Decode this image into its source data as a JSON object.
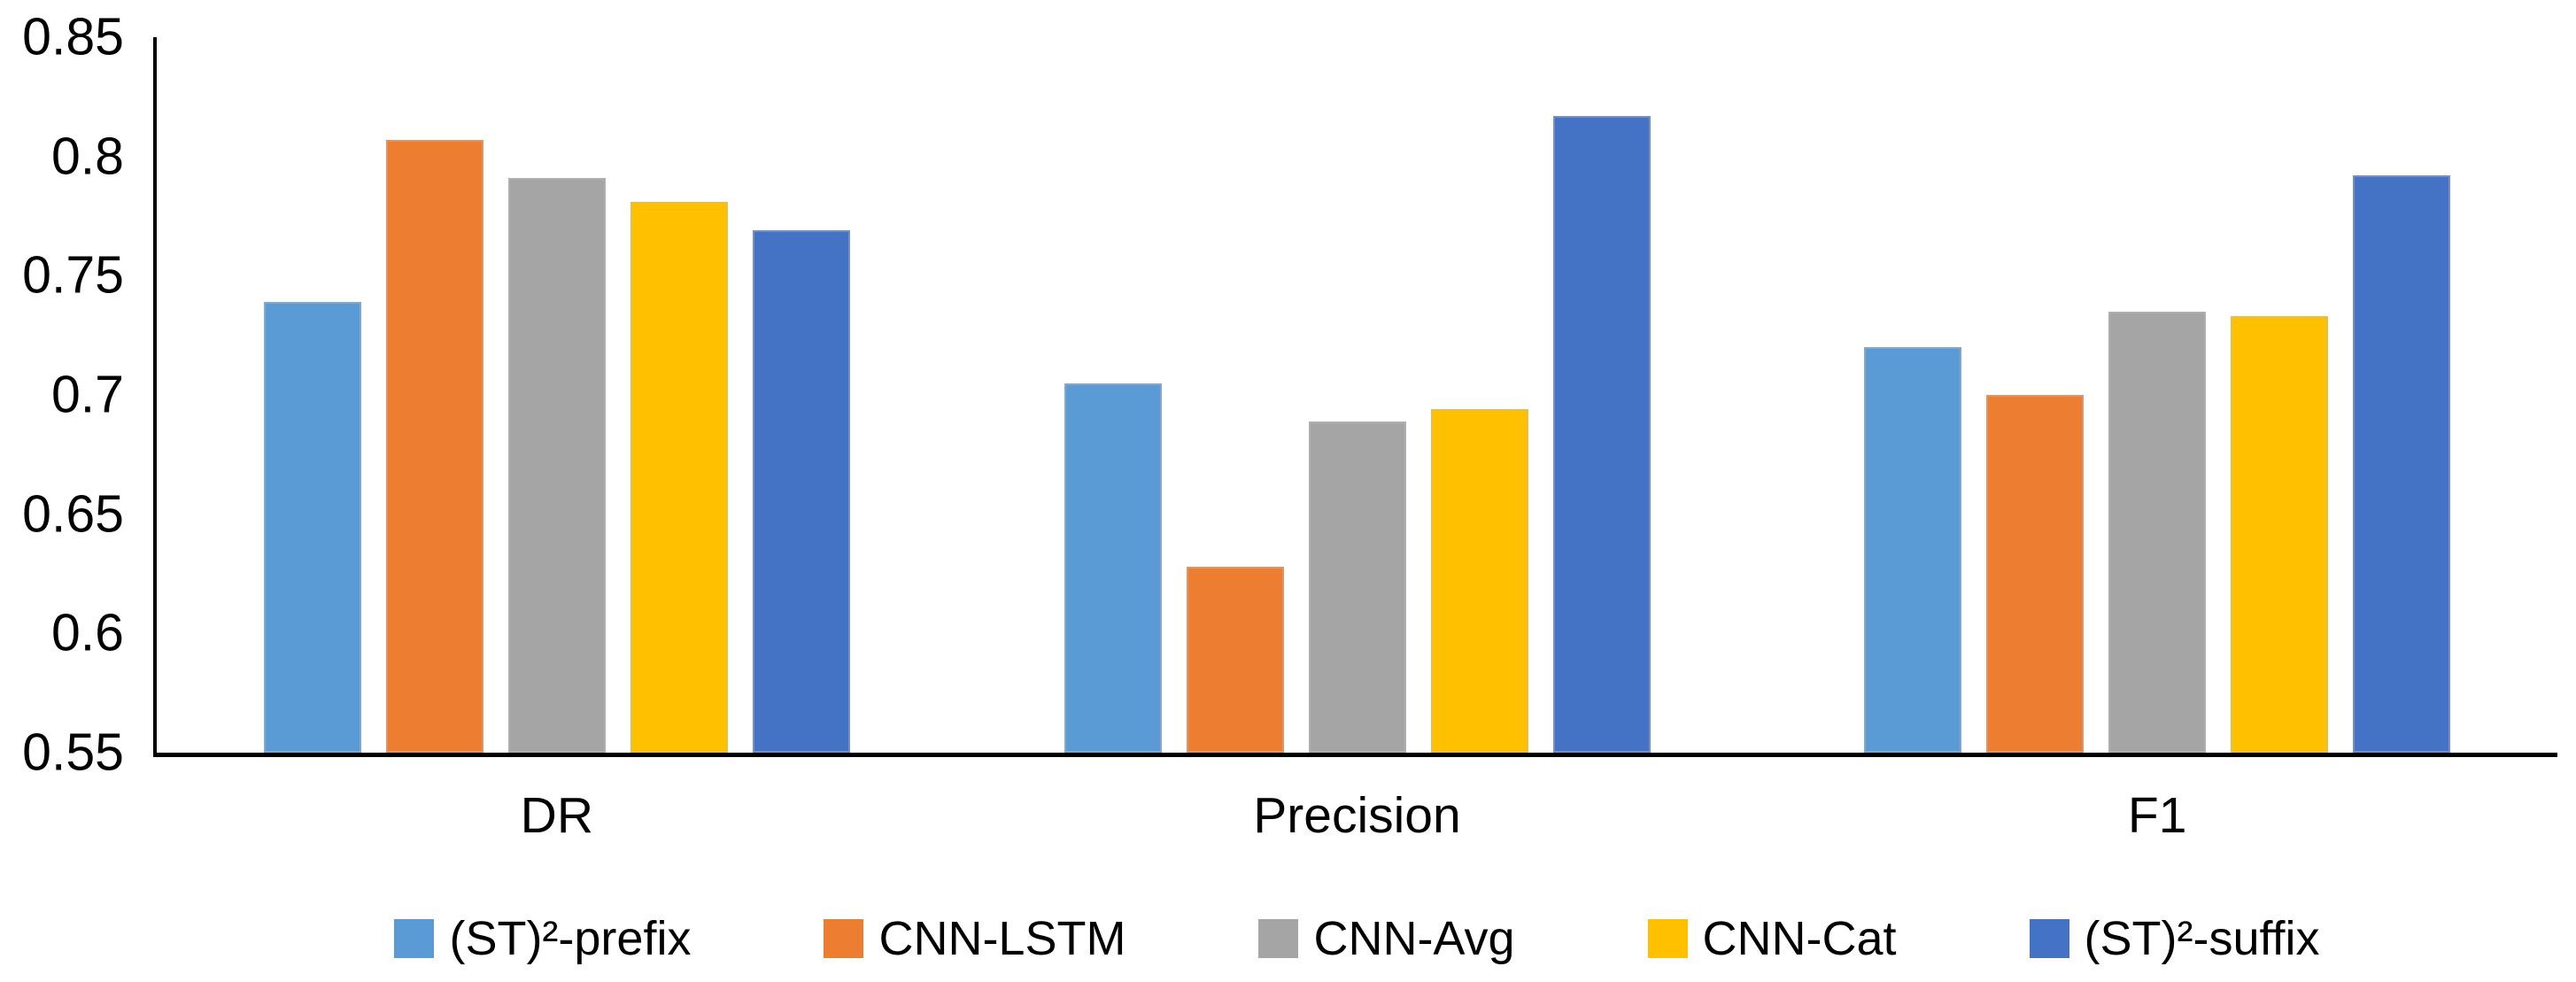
{
  "chart_data": {
    "type": "bar",
    "title": "",
    "xlabel": "",
    "ylabel": "",
    "categories": [
      "DR",
      "Precision",
      "F1"
    ],
    "series": [
      {
        "name": "(ST)²-prefix",
        "color": "#5B9BD5",
        "values": [
          0.739,
          0.705,
          0.72
        ]
      },
      {
        "name": "CNN-LSTM",
        "color": "#ED7D31",
        "values": [
          0.807,
          0.628,
          0.7
        ]
      },
      {
        "name": "CNN-Avg",
        "color": "#A5A5A5",
        "values": [
          0.791,
          0.689,
          0.735
        ]
      },
      {
        "name": "CNN-Cat",
        "color": "#FFC000",
        "values": [
          0.781,
          0.694,
          0.733
        ]
      },
      {
        "name": "(ST)²-suffix",
        "color": "#4472C4",
        "values": [
          0.769,
          0.817,
          0.792
        ]
      }
    ],
    "ylim": [
      0.55,
      0.85
    ],
    "yticks": [
      {
        "label": "0.85",
        "value": 0.85
      },
      {
        "label": "0.8",
        "value": 0.8
      },
      {
        "label": "0.75",
        "value": 0.75
      },
      {
        "label": "0.7",
        "value": 0.7
      },
      {
        "label": "0.65",
        "value": 0.65
      },
      {
        "label": "0.6",
        "value": 0.6
      },
      {
        "label": "0.55",
        "value": 0.55
      }
    ],
    "grid": false,
    "legend_position": "bottom",
    "axis_color": "#000000",
    "text_color": "#000000",
    "background_color": "#FFFFFF"
  }
}
